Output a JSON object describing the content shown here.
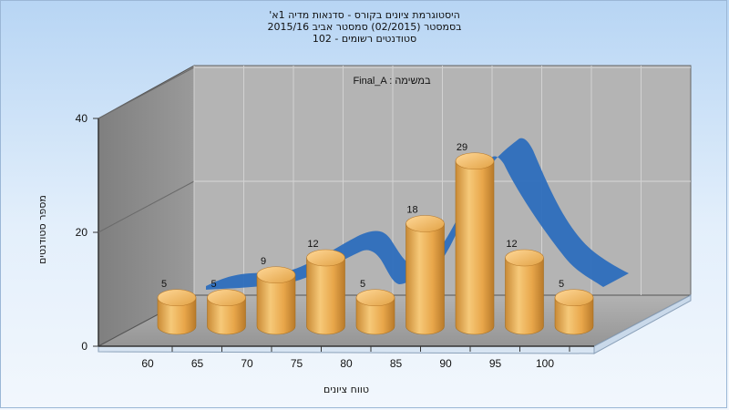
{
  "title_lines": [
    "היסטוגרמת ציונים בקורס - סדנאות מדיה 1א'",
    "בסמסטר  (02/2015)  סמסטר אביב 2015/16",
    "סטודנטים רשומים - 102"
  ],
  "chart_data": {
    "type": "bar",
    "title": "היסטוגרמת ציונים בקורס - סדנאות מדיה 1א'",
    "task_label": "Final_A : במשימה",
    "xlabel": "טווח ציונים",
    "ylabel": "מספר סטודנטים",
    "x_ticks": [
      "60",
      "65",
      "70",
      "75",
      "80",
      "85",
      "90",
      "95",
      "100"
    ],
    "categories": [
      "60",
      "65",
      "70",
      "75",
      "80",
      "85",
      "90",
      "95",
      "100"
    ],
    "values": [
      5,
      5,
      9,
      12,
      5,
      18,
      29,
      12,
      5
    ],
    "value_labels": [
      "5",
      "5",
      "9",
      "12",
      "5",
      "18",
      "29",
      "12",
      "5"
    ],
    "y_ticks": [
      "0",
      "20",
      "40"
    ],
    "ylim": [
      0,
      40
    ],
    "grid": true,
    "overlay": "distribution ribbon",
    "colors": {
      "bar": "#e8a64a",
      "curve": "#2f6ebc",
      "back_wall": "#b2b2b2",
      "side_wall": "#8a8a8a",
      "floor": "#a5a5a5"
    }
  }
}
